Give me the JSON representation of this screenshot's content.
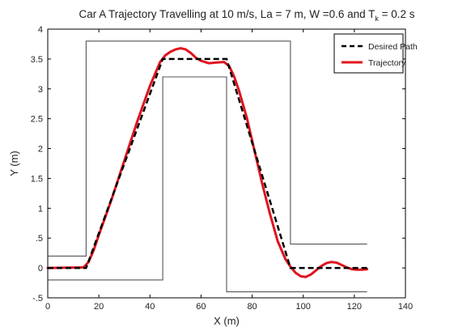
{
  "chart_data": {
    "type": "line",
    "title": "Car A Trajectory Travelling at 10 m/s, La = 7 m, W =0.6 and T",
    "title_subscript": "k",
    "title_suffix": " = 0.2 s",
    "xlabel": "X (m)",
    "ylabel": "Y (m)",
    "xlim": [
      0,
      140
    ],
    "ylim": [
      -0.5,
      4
    ],
    "xticks": [
      0,
      20,
      40,
      60,
      80,
      100,
      120,
      140
    ],
    "yticks": [
      -0.5,
      0,
      0.5,
      1,
      1.5,
      2,
      2.5,
      3,
      3.5,
      4
    ],
    "grid": false,
    "legend_position": "top-right",
    "series": [
      {
        "name": "Desired Path",
        "style": "dashed",
        "color": "#000000",
        "x": [
          0,
          15,
          45,
          70,
          95,
          125
        ],
        "y": [
          0,
          0,
          3.5,
          3.5,
          0,
          0
        ]
      },
      {
        "name": "Trajectory",
        "style": "solid",
        "color": "#e0141e",
        "x": [
          0,
          14,
          16,
          18,
          20,
          25,
          30,
          35,
          40,
          44,
          46,
          48,
          50,
          52,
          54,
          56,
          58,
          60,
          63,
          66,
          69,
          71,
          73,
          75,
          78,
          81,
          84,
          87,
          90,
          93,
          95,
          97,
          99,
          101,
          103,
          105,
          107,
          109,
          111,
          113,
          115,
          117,
          119,
          121,
          123,
          125
        ],
        "y": [
          0,
          0.01,
          0.1,
          0.3,
          0.55,
          1.15,
          1.8,
          2.45,
          3.05,
          3.45,
          3.56,
          3.62,
          3.66,
          3.68,
          3.66,
          3.6,
          3.52,
          3.47,
          3.43,
          3.44,
          3.45,
          3.38,
          3.2,
          2.95,
          2.5,
          1.95,
          1.4,
          0.9,
          0.45,
          0.15,
          0.02,
          -0.08,
          -0.14,
          -0.15,
          -0.11,
          -0.04,
          0.03,
          0.08,
          0.1,
          0.09,
          0.05,
          0.01,
          -0.02,
          -0.03,
          -0.03,
          -0.02
        ]
      }
    ],
    "boundaries": [
      {
        "name": "upper-boundary",
        "color": "#555555",
        "x": [
          0,
          15,
          15,
          95,
          95,
          125
        ],
        "y": [
          0.2,
          0.2,
          3.8,
          3.8,
          0.4,
          0.4
        ]
      },
      {
        "name": "lower-boundary",
        "color": "#555555",
        "x": [
          0,
          45,
          45,
          70,
          70,
          125
        ],
        "y": [
          -0.2,
          -0.2,
          3.2,
          3.2,
          -0.4,
          -0.4
        ]
      }
    ]
  }
}
